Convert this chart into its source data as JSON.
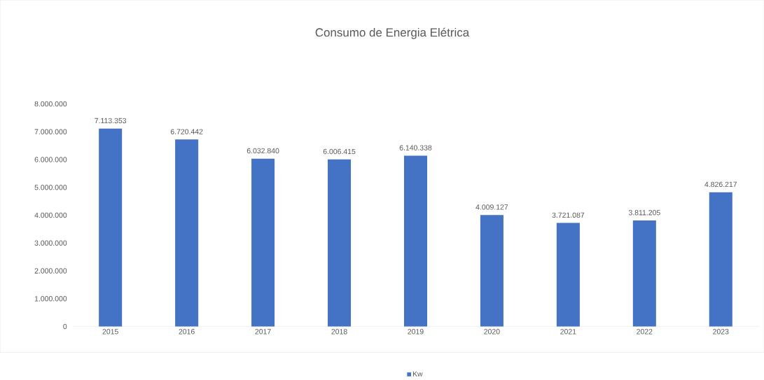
{
  "chart_data": {
    "type": "bar",
    "title": "Consumo de Energia Elétrica",
    "categories": [
      "2015",
      "2016",
      "2017",
      "2018",
      "2019",
      "2020",
      "2021",
      "2022",
      "2023"
    ],
    "series": [
      {
        "name": "Kw",
        "color": "#4472c4",
        "values": [
          7113353,
          6720442,
          6032840,
          6006415,
          6140338,
          4009127,
          3721087,
          3811205,
          4826217
        ],
        "value_labels": [
          "7.113.353",
          "6.720.442",
          "6.032.840",
          "6.006.415",
          "6.140.338",
          "4.009.127",
          "3.721.087",
          "3.811.205",
          "4.826.217"
        ]
      }
    ],
    "ylim": [
      0,
      8000000
    ],
    "yticks": [
      {
        "value": 0,
        "label": "0"
      },
      {
        "value": 1000000,
        "label": "1.000.000"
      },
      {
        "value": 2000000,
        "label": "2.000.000"
      },
      {
        "value": 3000000,
        "label": "3.000.000"
      },
      {
        "value": 4000000,
        "label": "4.000.000"
      },
      {
        "value": 5000000,
        "label": "5.000.000"
      },
      {
        "value": 6000000,
        "label": "6.000.000"
      },
      {
        "value": 7000000,
        "label": "7.000.000"
      },
      {
        "value": 8000000,
        "label": "8.000.000"
      }
    ],
    "legend": "bottom"
  }
}
